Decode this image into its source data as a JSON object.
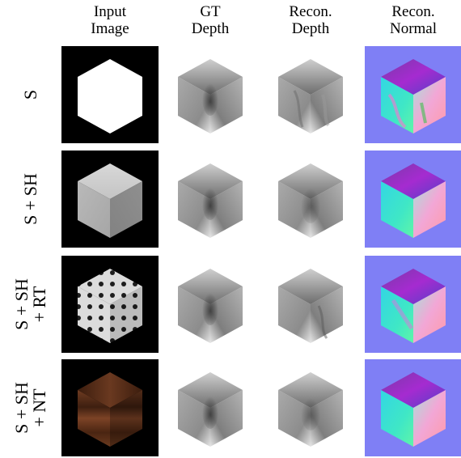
{
  "figure": {
    "columns": [
      {
        "line1": "Input",
        "line2": "Image"
      },
      {
        "line1": "GT",
        "line2": "Depth"
      },
      {
        "line1": "Recon.",
        "line2": "Depth"
      },
      {
        "line1": "Recon.",
        "line2": "Normal"
      }
    ],
    "rows": [
      {
        "line1": "S",
        "line2": ""
      },
      {
        "line1": "S + SH",
        "line2": ""
      },
      {
        "line1": "S + SH",
        "line2": "+ RT"
      },
      {
        "line1": "S + SH",
        "line2": "+ NT"
      }
    ]
  },
  "colors": {
    "input_background": "#000000",
    "normal_background": "#7f7ff5",
    "depth_background": "#ffffff"
  }
}
